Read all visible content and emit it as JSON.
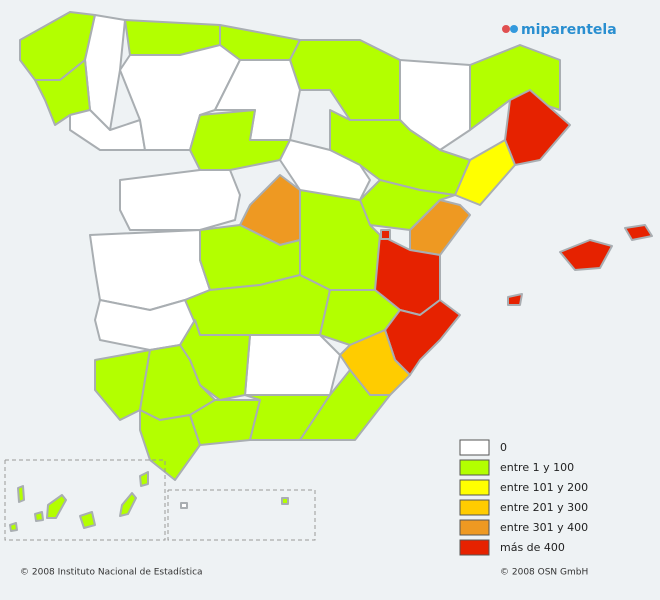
{
  "logo": "miparentela",
  "legend": [
    {
      "label": "0",
      "color": "#ffffff"
    },
    {
      "label": "entre 1 y 100",
      "color": "#b3ff00"
    },
    {
      "label": "entre 101 y 200",
      "color": "#ffff00"
    },
    {
      "label": "entre 201 y 300",
      "color": "#ffcc00"
    },
    {
      "label": "entre 301 y 400",
      "color": "#ee9922"
    },
    {
      "label": "más de 400",
      "color": "#e62200"
    }
  ],
  "footer": {
    "left": "© 2008 Instituto Nacional de Estadística",
    "right": "© 2008 OSN GmbH"
  }
}
